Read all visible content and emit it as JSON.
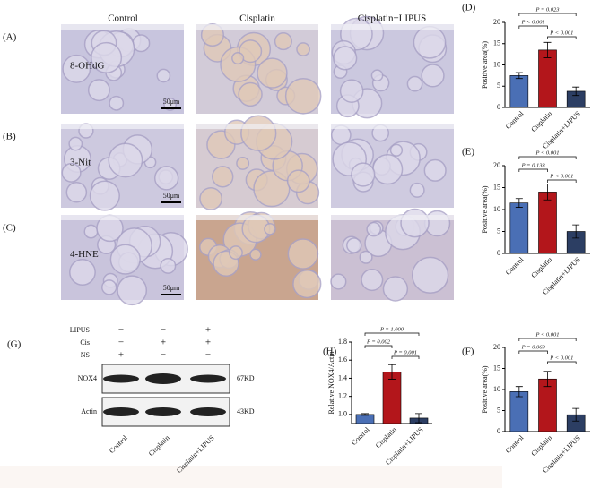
{
  "figure": {
    "panel_labels": [
      "(A)",
      "(B)",
      "(C)",
      "(D)",
      "(E)",
      "(F)",
      "(G)",
      "(H)"
    ],
    "column_headers": [
      "Control",
      "Cisplatin",
      "Cisplatin+LIPUS"
    ],
    "row_labels": [
      "8-OHdG",
      "3-Nit",
      "4-HNE"
    ],
    "scale_bar": "50μm"
  },
  "blot": {
    "treatments": [
      {
        "name": "LIPUS",
        "signs": [
          "−",
          "−",
          "+"
        ]
      },
      {
        "name": "Cis",
        "signs": [
          "−",
          "+",
          "+"
        ]
      },
      {
        "name": "NS",
        "signs": [
          "+",
          "−",
          "−"
        ]
      }
    ],
    "bands": [
      {
        "name": "NOX4",
        "size": "67KD"
      },
      {
        "name": "Actin",
        "size": "43KD"
      }
    ],
    "categories": [
      "Control",
      "Cisplatin",
      "Cisplatin+LIPUS"
    ]
  },
  "chart_data": [
    {
      "type": "bar",
      "ylabel": "Positive area(%)",
      "categories": [
        "Control",
        "Cisplatin",
        "Cisplatin+LIPUS"
      ],
      "values": [
        7.5,
        13.5,
        3.8
      ],
      "errors": [
        0.7,
        1.8,
        1.0
      ],
      "colors": [
        "#4a6fb5",
        "#b3161b",
        "#2c3e63"
      ],
      "ylim": [
        0,
        20
      ],
      "yticks": [
        0,
        5,
        10,
        15,
        20
      ],
      "annotations": [
        "P < 0.001",
        "P < 0.001",
        "P = 0.023"
      ]
    },
    {
      "type": "bar",
      "ylabel": "Positive area(%)",
      "categories": [
        "Control",
        "Cisplatin",
        "Cisplatin+LIPUS"
      ],
      "values": [
        11.5,
        14,
        5
      ],
      "errors": [
        1.0,
        1.8,
        1.5
      ],
      "colors": [
        "#4a6fb5",
        "#b3161b",
        "#2c3e63"
      ],
      "ylim": [
        0,
        20
      ],
      "yticks": [
        0,
        5,
        10,
        15,
        20
      ],
      "annotations": [
        "P = 0.133",
        "P < 0.001",
        "P < 0.001"
      ]
    },
    {
      "type": "bar",
      "ylabel": "Positive area(%)",
      "categories": [
        "Control",
        "Cisplatin",
        "Cisplatin+LIPUS"
      ],
      "values": [
        9.5,
        12.5,
        4
      ],
      "errors": [
        1.2,
        1.8,
        1.5
      ],
      "colors": [
        "#4a6fb5",
        "#b3161b",
        "#2c3e63"
      ],
      "ylim": [
        0,
        20
      ],
      "yticks": [
        0,
        5,
        10,
        15,
        20
      ],
      "annotations": [
        "P = 0.069",
        "P < 0.001",
        "P < 0.001"
      ]
    },
    {
      "type": "bar",
      "ylabel": "Relative NOX4/Actin",
      "categories": [
        "Control",
        "Cisplatin",
        "Cisplatin+LIPUS"
      ],
      "values": [
        1.0,
        1.47,
        0.96
      ],
      "errors": [
        0.01,
        0.08,
        0.05
      ],
      "colors": [
        "#4a6fb5",
        "#b3161b",
        "#2c3e63"
      ],
      "ylim": [
        0.9,
        1.8
      ],
      "yticks": [
        {
          "value": 1,
          "label": "1.0"
        },
        1.2,
        1.4,
        1.6,
        1.8
      ],
      "annotations": [
        "P = 0.002",
        "P = 0.001",
        "P = 1.000"
      ]
    }
  ]
}
